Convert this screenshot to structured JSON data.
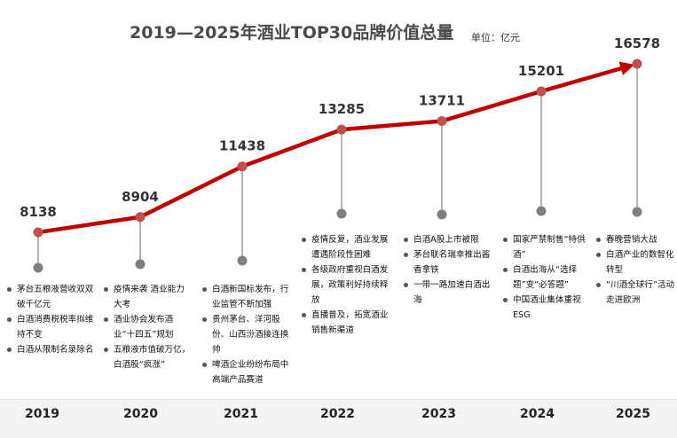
{
  "chart_data": {
    "type": "line",
    "title": "2019—2025年酒业TOP30品牌价值总量",
    "unit_label": "单位：亿元",
    "categories": [
      "2019",
      "2020",
      "2021",
      "2022",
      "2023",
      "2024",
      "2025"
    ],
    "values": [
      8138,
      8904,
      11438,
      13285,
      13711,
      15201,
      16578
    ],
    "value_labels": [
      "8138",
      "8904",
      "11438",
      "13285",
      "13711",
      "15201",
      "16578"
    ],
    "line_color": "#c00000",
    "marker_color": "#c0504d",
    "stem_marker_color": "#7f7f7f",
    "notes": [
      [
        "茅台五粮液营收双双破千亿元",
        "白酒消费税税率拟维持不变",
        "白酒从限制名录除名"
      ],
      [
        "疫情来袭 酒业能力大考",
        "酒业协会发布酒业“十四五”规划",
        "五粮液市值破万亿，白酒股“疯涨”"
      ],
      [
        "白酒新国标发布，行业监管不断加强",
        "贵州茅台、洋河股份、山西汾酒接连换帅",
        "啤酒企业纷纷布局中高端产品赛道"
      ],
      [
        "疫情反复，酒业发展遭遇阶段性困难",
        "各级政府重视白酒发展，政策利好持续释放",
        "直播普及，拓宽酒业销售新渠道"
      ],
      [
        "白酒A股上市被限",
        "茅台联名瑞幸推出酱香拿铁",
        "一带一路加速白酒出海"
      ],
      [
        "国家严禁制售“特供酒”",
        "白酒出海从“选择题”变“必答题”",
        "中国酒业集体重视ESG"
      ],
      [
        "春晚营销大战",
        "白酒产业的数智化转型",
        "“川酒全球行”活动走进欧洲"
      ]
    ]
  }
}
